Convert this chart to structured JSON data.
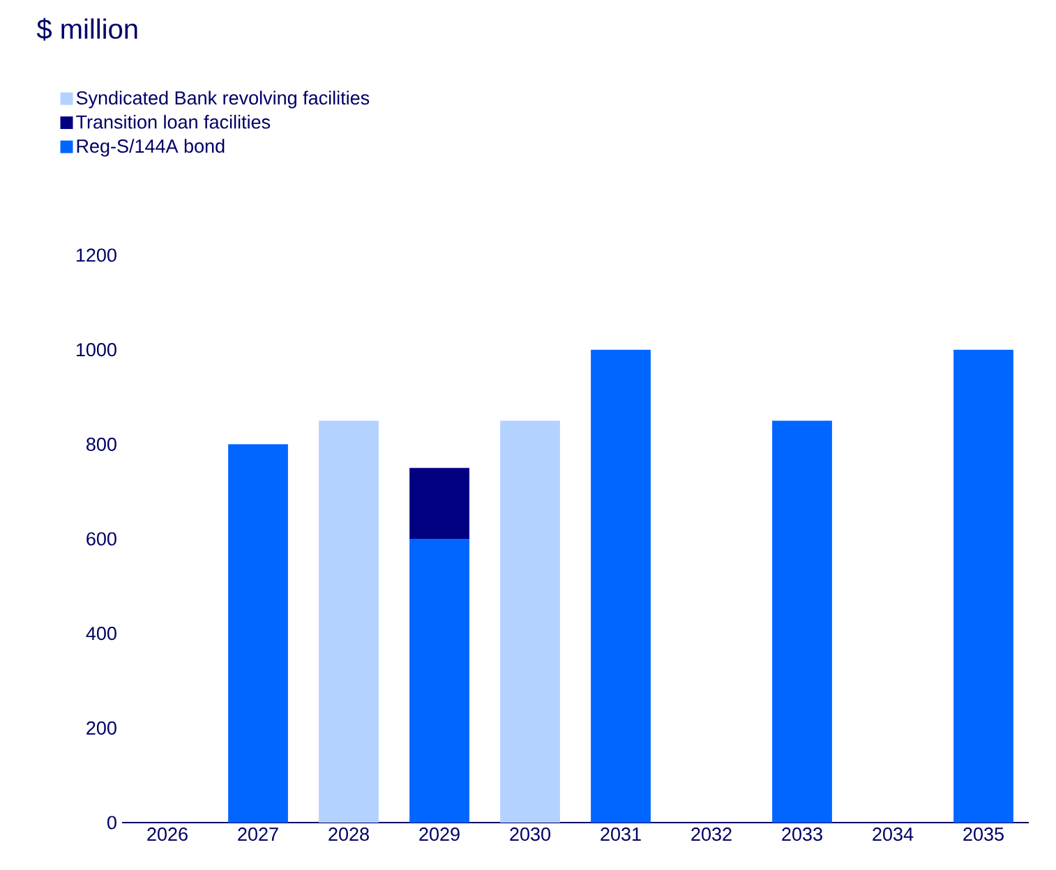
{
  "chart_data": {
    "type": "bar",
    "title": "$ million",
    "stacked": true,
    "categories": [
      "2026",
      "2027",
      "2028",
      "2029",
      "2030",
      "2031",
      "2032",
      "2033",
      "2034",
      "2035"
    ],
    "series": [
      {
        "name": "Reg-S/144A bond",
        "color": "#0066ff",
        "values": [
          null,
          800,
          null,
          600,
          null,
          1000,
          null,
          850,
          null,
          1000
        ]
      },
      {
        "name": "Transition loan facilities",
        "color": "#000080",
        "values": [
          null,
          null,
          null,
          150,
          null,
          null,
          null,
          null,
          null,
          null
        ]
      },
      {
        "name": "Syndicated Bank revolving facilities",
        "color": "#b4d2ff",
        "values": [
          null,
          null,
          850,
          null,
          850,
          null,
          null,
          null,
          null,
          null
        ]
      }
    ],
    "ylim": [
      0,
      1200
    ],
    "yticks": [
      0,
      200,
      400,
      600,
      800,
      1000,
      1200
    ],
    "grid": false,
    "legend": "top left"
  }
}
